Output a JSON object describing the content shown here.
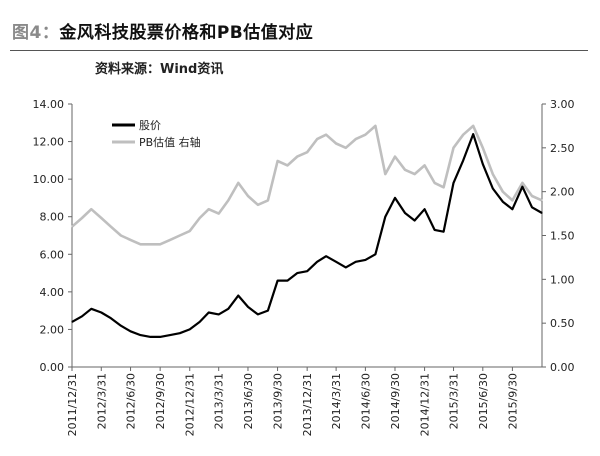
{
  "header": {
    "figure_label": "图4：",
    "title": "金风科技股票价格和PB估值对应",
    "source": "资料来源：Wind资讯"
  },
  "chart_data": {
    "type": "line",
    "title": "金风科技股票价格和PB估值对应",
    "xlabel": "",
    "ylabel": "",
    "x_ticks": [
      "2011/12/31",
      "2012/3/31",
      "2012/6/30",
      "2012/9/30",
      "2012/12/31",
      "2013/3/31",
      "2013/6/30",
      "2013/9/30",
      "2013/12/31",
      "2014/3/31",
      "2014/6/30",
      "2014/9/30",
      "2014/12/31",
      "2015/3/31",
      "2015/6/30",
      "2015/9/30"
    ],
    "y_left": {
      "min": 0,
      "max": 14,
      "ticks": [
        "0.00",
        "2.00",
        "4.00",
        "6.00",
        "8.00",
        "10.00",
        "12.00",
        "14.00"
      ]
    },
    "y_right": {
      "min": 0,
      "max": 3,
      "ticks": [
        "0.00",
        "0.50",
        "1.00",
        "1.50",
        "2.00",
        "2.50",
        "3.00"
      ]
    },
    "grid": false,
    "legend_position": "top-left",
    "series": [
      {
        "name": "股价",
        "axis": "left",
        "color": "#000000",
        "points": [
          [
            "2011/12/31",
            2.4
          ],
          [
            "2012/1/31",
            2.7
          ],
          [
            "2012/2/29",
            3.1
          ],
          [
            "2012/3/31",
            2.9
          ],
          [
            "2012/4/30",
            2.6
          ],
          [
            "2012/5/31",
            2.2
          ],
          [
            "2012/6/30",
            1.9
          ],
          [
            "2012/7/31",
            1.7
          ],
          [
            "2012/8/31",
            1.6
          ],
          [
            "2012/9/30",
            1.6
          ],
          [
            "2012/10/31",
            1.7
          ],
          [
            "2012/11/30",
            1.8
          ],
          [
            "2012/12/31",
            2.0
          ],
          [
            "2013/1/31",
            2.4
          ],
          [
            "2013/2/28",
            2.9
          ],
          [
            "2013/3/31",
            2.8
          ],
          [
            "2013/4/30",
            3.1
          ],
          [
            "2013/5/31",
            3.8
          ],
          [
            "2013/6/30",
            3.2
          ],
          [
            "2013/7/31",
            2.8
          ],
          [
            "2013/8/31",
            3.0
          ],
          [
            "2013/9/30",
            4.6
          ],
          [
            "2013/10/31",
            4.6
          ],
          [
            "2013/11/30",
            5.0
          ],
          [
            "2013/12/31",
            5.1
          ],
          [
            "2014/1/31",
            5.6
          ],
          [
            "2014/2/28",
            5.9
          ],
          [
            "2014/3/31",
            5.6
          ],
          [
            "2014/4/30",
            5.3
          ],
          [
            "2014/5/31",
            5.6
          ],
          [
            "2014/6/30",
            5.7
          ],
          [
            "2014/7/31",
            6.0
          ],
          [
            "2014/8/31",
            8.0
          ],
          [
            "2014/9/30",
            9.0
          ],
          [
            "2014/10/31",
            8.2
          ],
          [
            "2014/11/30",
            7.8
          ],
          [
            "2014/12/31",
            8.4
          ],
          [
            "2015/1/31",
            7.3
          ],
          [
            "2015/2/28",
            7.2
          ],
          [
            "2015/3/31",
            9.8
          ],
          [
            "2015/4/30",
            11.0
          ],
          [
            "2015/5/31",
            12.4
          ],
          [
            "2015/6/30",
            10.8
          ],
          [
            "2015/7/31",
            9.5
          ],
          [
            "2015/8/31",
            8.8
          ],
          [
            "2015/9/30",
            8.4
          ],
          [
            "2015/10/31",
            9.6
          ],
          [
            "2015/11/30",
            8.5
          ],
          [
            "2015/12/31",
            8.2
          ]
        ]
      },
      {
        "name": "PB估值 右轴",
        "axis": "right",
        "color": "#bfbfbf",
        "points": [
          [
            "2011/12/31",
            1.6
          ],
          [
            "2012/1/31",
            1.7
          ],
          [
            "2012/2/29",
            1.8
          ],
          [
            "2012/3/31",
            1.7
          ],
          [
            "2012/4/30",
            1.6
          ],
          [
            "2012/5/31",
            1.5
          ],
          [
            "2012/6/30",
            1.45
          ],
          [
            "2012/7/31",
            1.4
          ],
          [
            "2012/8/31",
            1.4
          ],
          [
            "2012/9/30",
            1.4
          ],
          [
            "2012/10/31",
            1.45
          ],
          [
            "2012/11/30",
            1.5
          ],
          [
            "2012/12/31",
            1.55
          ],
          [
            "2013/1/31",
            1.7
          ],
          [
            "2013/2/28",
            1.8
          ],
          [
            "2013/3/31",
            1.75
          ],
          [
            "2013/4/30",
            1.9
          ],
          [
            "2013/5/31",
            2.1
          ],
          [
            "2013/6/30",
            1.95
          ],
          [
            "2013/7/31",
            1.85
          ],
          [
            "2013/8/31",
            1.9
          ],
          [
            "2013/9/30",
            2.35
          ],
          [
            "2013/10/31",
            2.3
          ],
          [
            "2013/11/30",
            2.4
          ],
          [
            "2013/12/31",
            2.45
          ],
          [
            "2014/1/31",
            2.6
          ],
          [
            "2014/2/28",
            2.65
          ],
          [
            "2014/3/31",
            2.55
          ],
          [
            "2014/4/30",
            2.5
          ],
          [
            "2014/5/31",
            2.6
          ],
          [
            "2014/6/30",
            2.65
          ],
          [
            "2014/7/31",
            2.75
          ],
          [
            "2014/8/31",
            2.2
          ],
          [
            "2014/9/30",
            2.4
          ],
          [
            "2014/10/31",
            2.25
          ],
          [
            "2014/11/30",
            2.2
          ],
          [
            "2014/12/31",
            2.3
          ],
          [
            "2015/1/31",
            2.1
          ],
          [
            "2015/2/28",
            2.05
          ],
          [
            "2015/3/31",
            2.5
          ],
          [
            "2015/4/30",
            2.65
          ],
          [
            "2015/5/31",
            2.75
          ],
          [
            "2015/6/30",
            2.5
          ],
          [
            "2015/7/31",
            2.2
          ],
          [
            "2015/8/31",
            2.0
          ],
          [
            "2015/9/30",
            1.9
          ],
          [
            "2015/10/31",
            2.1
          ],
          [
            "2015/11/30",
            1.95
          ],
          [
            "2015/12/31",
            1.9
          ]
        ]
      }
    ]
  }
}
